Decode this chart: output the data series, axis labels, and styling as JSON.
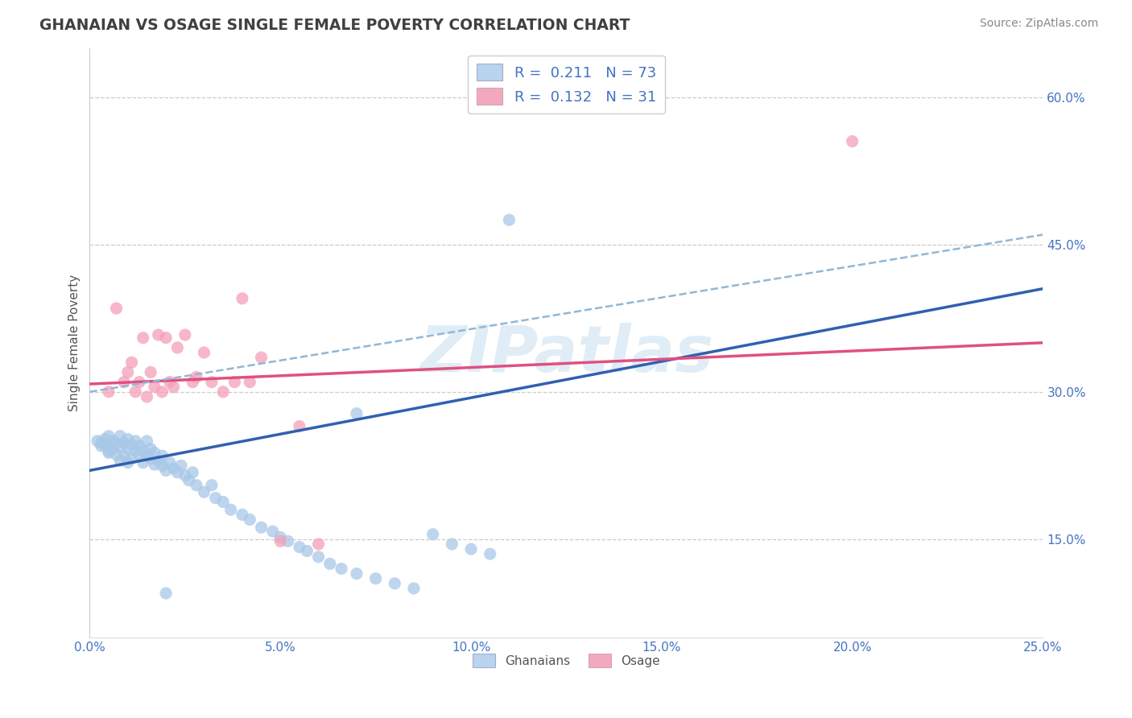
{
  "title": "GHANAIAN VS OSAGE SINGLE FEMALE POVERTY CORRELATION CHART",
  "source": "Source: ZipAtlas.com",
  "ylabel": "Single Female Poverty",
  "xlim": [
    0.0,
    0.25
  ],
  "ylim": [
    0.05,
    0.65
  ],
  "xticks": [
    0.0,
    0.05,
    0.1,
    0.15,
    0.2,
    0.25
  ],
  "xtick_labels": [
    "0.0%",
    "5.0%",
    "10.0%",
    "15.0%",
    "20.0%",
    "25.0%"
  ],
  "yticks_right": [
    0.15,
    0.3,
    0.45,
    0.6
  ],
  "ytick_labels_right": [
    "15.0%",
    "30.0%",
    "45.0%",
    "60.0%"
  ],
  "blue_color": "#a8c8e8",
  "pink_color": "#f4a0b8",
  "blue_line_color": "#3060b0",
  "pink_line_color": "#e05080",
  "dashed_line_color": "#90b8d8",
  "watermark": "ZIPatlas",
  "blue_line": [
    [
      0.0,
      0.22
    ],
    [
      0.25,
      0.405
    ]
  ],
  "pink_line": [
    [
      0.0,
      0.308
    ],
    [
      0.25,
      0.35
    ]
  ],
  "dashed_line": [
    [
      0.0,
      0.3
    ],
    [
      0.25,
      0.46
    ]
  ],
  "ghanaian_x": [
    0.002,
    0.003,
    0.003,
    0.004,
    0.004,
    0.005,
    0.005,
    0.005,
    0.006,
    0.006,
    0.007,
    0.007,
    0.008,
    0.008,
    0.008,
    0.009,
    0.009,
    0.01,
    0.01,
    0.01,
    0.011,
    0.011,
    0.012,
    0.012,
    0.013,
    0.013,
    0.014,
    0.014,
    0.015,
    0.015,
    0.016,
    0.016,
    0.017,
    0.017,
    0.018,
    0.019,
    0.019,
    0.02,
    0.021,
    0.022,
    0.023,
    0.024,
    0.025,
    0.026,
    0.027,
    0.028,
    0.03,
    0.032,
    0.033,
    0.035,
    0.037,
    0.04,
    0.042,
    0.045,
    0.048,
    0.05,
    0.052,
    0.055,
    0.057,
    0.06,
    0.063,
    0.066,
    0.07,
    0.075,
    0.08,
    0.085,
    0.09,
    0.095,
    0.1,
    0.105,
    0.11,
    0.07,
    0.02
  ],
  "ghanaian_y": [
    0.25,
    0.248,
    0.245,
    0.252,
    0.246,
    0.24,
    0.255,
    0.238,
    0.25,
    0.242,
    0.248,
    0.236,
    0.244,
    0.255,
    0.23,
    0.248,
    0.235,
    0.242,
    0.252,
    0.228,
    0.246,
    0.232,
    0.24,
    0.25,
    0.236,
    0.245,
    0.228,
    0.24,
    0.235,
    0.25,
    0.232,
    0.242,
    0.226,
    0.238,
    0.23,
    0.225,
    0.235,
    0.22,
    0.228,
    0.222,
    0.218,
    0.225,
    0.215,
    0.21,
    0.218,
    0.205,
    0.198,
    0.205,
    0.192,
    0.188,
    0.18,
    0.175,
    0.17,
    0.162,
    0.158,
    0.152,
    0.148,
    0.142,
    0.138,
    0.132,
    0.125,
    0.12,
    0.115,
    0.11,
    0.105,
    0.1,
    0.155,
    0.145,
    0.14,
    0.135,
    0.475,
    0.278,
    0.095
  ],
  "osage_x": [
    0.005,
    0.007,
    0.009,
    0.01,
    0.011,
    0.012,
    0.013,
    0.014,
    0.015,
    0.016,
    0.017,
    0.018,
    0.019,
    0.02,
    0.021,
    0.022,
    0.023,
    0.025,
    0.027,
    0.028,
    0.03,
    0.032,
    0.035,
    0.038,
    0.04,
    0.042,
    0.045,
    0.05,
    0.055,
    0.06,
    0.2
  ],
  "osage_y": [
    0.3,
    0.385,
    0.31,
    0.32,
    0.33,
    0.3,
    0.31,
    0.355,
    0.295,
    0.32,
    0.305,
    0.358,
    0.3,
    0.355,
    0.31,
    0.305,
    0.345,
    0.358,
    0.31,
    0.315,
    0.34,
    0.31,
    0.3,
    0.31,
    0.395,
    0.31,
    0.335,
    0.148,
    0.265,
    0.145,
    0.555
  ]
}
